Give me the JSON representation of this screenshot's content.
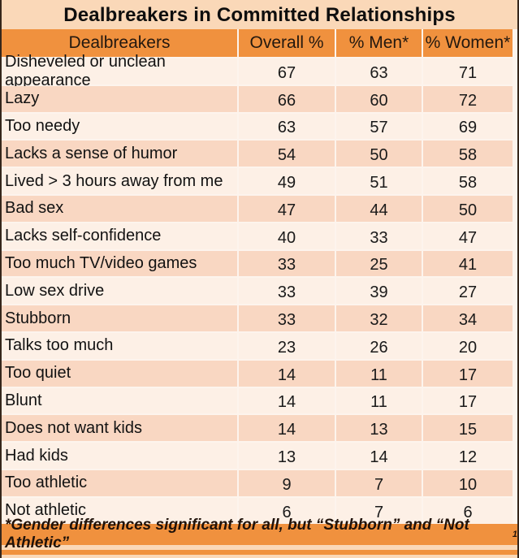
{
  "chart_data": {
    "type": "table",
    "title": "Dealbreakers in Committed Relationships",
    "columns": [
      "Dealbreakers",
      "Overall %",
      "% Men*",
      "% Women*"
    ],
    "rows": [
      [
        "Disheveled or unclean appearance",
        67,
        63,
        71
      ],
      [
        "Lazy",
        66,
        60,
        72
      ],
      [
        "Too needy",
        63,
        57,
        69
      ],
      [
        "Lacks a sense of humor",
        54,
        50,
        58
      ],
      [
        "Lived > 3 hours away from me",
        49,
        51,
        58
      ],
      [
        "Bad sex",
        47,
        44,
        50
      ],
      [
        "Lacks self-confidence",
        40,
        33,
        47
      ],
      [
        "Too much TV/video games",
        33,
        25,
        41
      ],
      [
        "Low sex drive",
        33,
        39,
        27
      ],
      [
        "Stubborn",
        33,
        32,
        34
      ],
      [
        "Talks too much",
        23,
        26,
        20
      ],
      [
        "Too quiet",
        14,
        11,
        17
      ],
      [
        "Blunt",
        14,
        11,
        17
      ],
      [
        "Does not want kids",
        14,
        13,
        15
      ],
      [
        "Had kids",
        13,
        14,
        12
      ],
      [
        "Too athletic",
        9,
        7,
        10
      ],
      [
        "Not athletic",
        6,
        7,
        6
      ]
    ],
    "legend": "none",
    "grid": "row-separators"
  },
  "footnote": {
    "text": "*Gender differences significant for all, but “Stubborn” and “Not Athletic”",
    "superscript": "1"
  },
  "colors": {
    "accent_orange": "#F0913E",
    "row_light": "#FDF0E6",
    "row_dark": "#F9D7C2",
    "background": "#FAD8B8",
    "edge_border": "#35261B",
    "title_text": "#0E0E0E"
  }
}
